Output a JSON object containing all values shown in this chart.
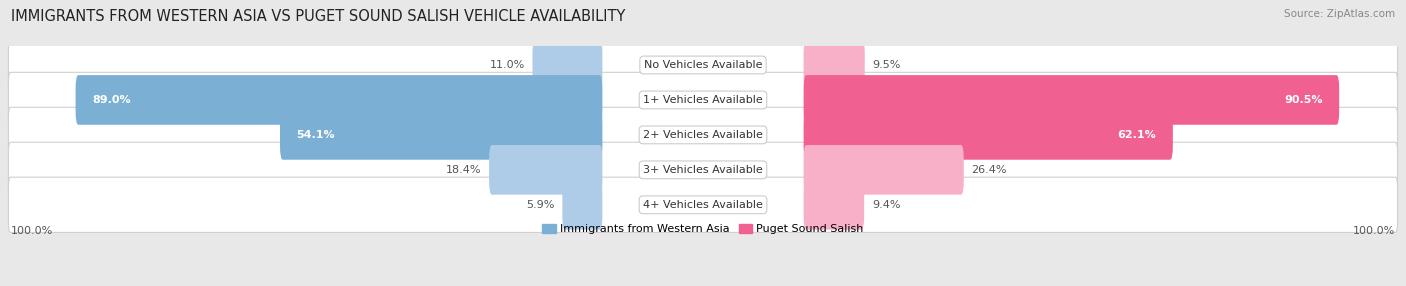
{
  "title": "IMMIGRANTS FROM WESTERN ASIA VS PUGET SOUND SALISH VEHICLE AVAILABILITY",
  "source": "Source: ZipAtlas.com",
  "categories": [
    "No Vehicles Available",
    "1+ Vehicles Available",
    "2+ Vehicles Available",
    "3+ Vehicles Available",
    "4+ Vehicles Available"
  ],
  "left_values": [
    11.0,
    89.0,
    54.1,
    18.4,
    5.9
  ],
  "right_values": [
    9.5,
    90.5,
    62.1,
    26.4,
    9.4
  ],
  "left_color_dark": "#7bafd4",
  "left_color_light": "#aecce8",
  "right_color_dark": "#f06090",
  "right_color_light": "#f8b0c8",
  "bar_height": 0.62,
  "bg_color": "#e8e8e8",
  "row_bg_even": "#f7f7f7",
  "row_bg_odd": "#efefef",
  "label_left": "Immigrants from Western Asia",
  "label_right": "Puget Sound Salish",
  "axis_label": "100.0%",
  "title_fontsize": 10.5,
  "source_fontsize": 7.5,
  "value_fontsize": 8,
  "cat_fontsize": 8,
  "legend_fontsize": 8
}
